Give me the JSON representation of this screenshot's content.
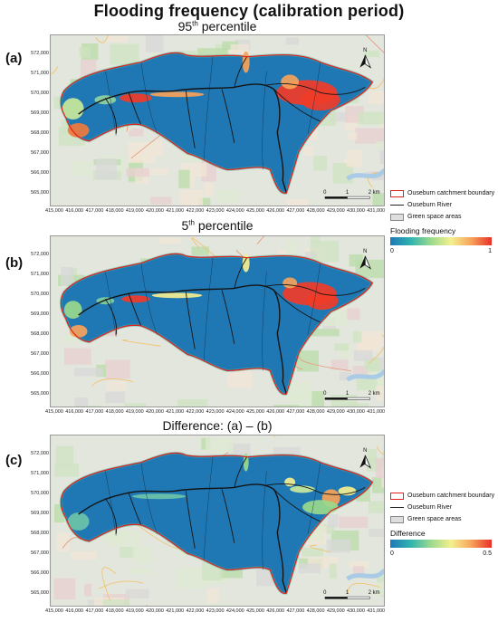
{
  "title": "Flooding frequency (calibration period)",
  "panels": [
    {
      "label": "(a)",
      "subtitle_base": "95",
      "subtitle_sup": "th",
      "subtitle_rest": " percentile"
    },
    {
      "label": "(b)",
      "subtitle_base": "5",
      "subtitle_sup": "th",
      "subtitle_rest": " percentile"
    },
    {
      "label": "(c)",
      "subtitle_base": "Difference: (a) – (b)",
      "subtitle_sup": "",
      "subtitle_rest": ""
    }
  ],
  "axes": {
    "y_ticks": [
      "572,000",
      "571,000",
      "570,000",
      "569,000",
      "568,000",
      "567,000",
      "566,000",
      "565,000"
    ],
    "x_ticks": [
      "415,000",
      "416,000",
      "417,000",
      "418,000",
      "419,000",
      "420,000",
      "421,000",
      "422,000",
      "423,000",
      "424,000",
      "425,000",
      "426,000",
      "427,000",
      "428,000",
      "429,000",
      "430,000",
      "431,000"
    ]
  },
  "scalebar": {
    "labels": [
      "0",
      "1",
      "2 km"
    ]
  },
  "north_label": "N",
  "legend": {
    "boundary": "Ouseburn catchment boundary",
    "river": "Ouseburn River",
    "green": "Green space areas"
  },
  "colorbars": [
    {
      "title": "Flooding frequency",
      "min": "0",
      "max": "1"
    },
    {
      "title": "Difference",
      "min": "0",
      "max": "0.5"
    }
  ],
  "colors": {
    "catchment": "#1f78b4",
    "boundary": "#e0201c",
    "high_flood": "#f03c28",
    "colormap": [
      "#1f78b4",
      "#2fb3b0",
      "#9bd98c",
      "#f5ef8f",
      "#f7a25a",
      "#e8302a"
    ]
  }
}
